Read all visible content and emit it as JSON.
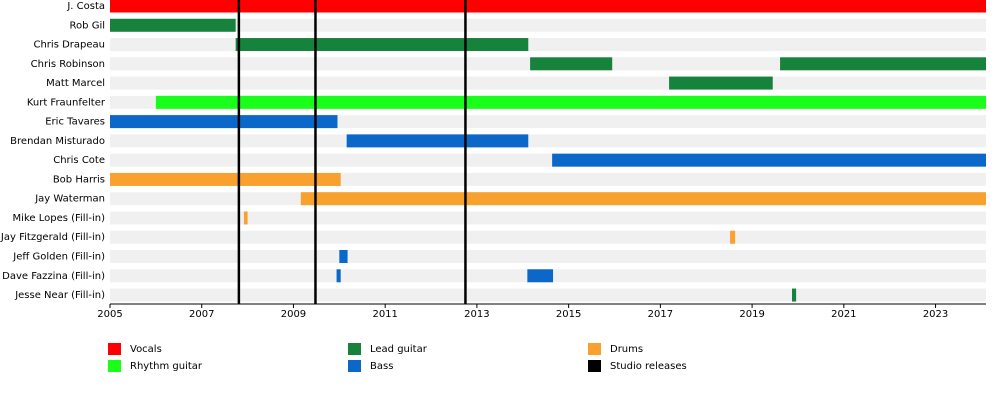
{
  "chart_data": {
    "type": "timeline",
    "categories": [
      "J. Costa",
      "Rob Gil",
      "Chris Drapeau",
      "Chris Robinson",
      "Matt Marcel",
      "Kurt Fraunfelter",
      "Eric Tavares",
      "Brendan Misturado",
      "Chris Cote",
      "Bob Harris",
      "Jay Waterman",
      "Mike Lopes (Fill-in)",
      "Jay Fitzgerald (Fill-in)",
      "Jeff Golden (Fill-in)",
      "Dave Fazzina (Fill-in)",
      "Jesse Near (Fill-in)"
    ],
    "xlim": [
      2005,
      2024.1
    ],
    "xticks": [
      2005,
      2007,
      2009,
      2011,
      2013,
      2015,
      2017,
      2019,
      2021,
      2023
    ],
    "series": [
      {
        "name": "Vocals",
        "color": "#ff0000",
        "spans": [
          {
            "member": "J. Costa",
            "start": 2005,
            "end": 2024.1
          }
        ]
      },
      {
        "name": "Rhythm guitar",
        "color": "#1aff1a",
        "spans": [
          {
            "member": "Kurt Fraunfelter",
            "start": 2006.0,
            "end": 2024.1
          }
        ]
      },
      {
        "name": "Lead guitar",
        "color": "#17823b",
        "spans": [
          {
            "member": "Rob Gil",
            "start": 2005,
            "end": 2007.74
          },
          {
            "member": "Chris Drapeau",
            "start": 2007.74,
            "end": 2014.12
          },
          {
            "member": "Chris Robinson",
            "start": 2014.16,
            "end": 2015.95
          },
          {
            "member": "Chris Robinson",
            "start": 2019.61,
            "end": 2024.1
          },
          {
            "member": "Matt Marcel",
            "start": 2017.19,
            "end": 2019.45
          },
          {
            "member": "Jesse Near (Fill-in)",
            "start": 2019.87,
            "end": 2019.96
          }
        ]
      },
      {
        "name": "Bass",
        "color": "#0b68c9",
        "spans": [
          {
            "member": "Eric Tavares",
            "start": 2005,
            "end": 2009.96
          },
          {
            "member": "Brendan Misturado",
            "start": 2010.16,
            "end": 2014.12
          },
          {
            "member": "Chris Cote",
            "start": 2014.64,
            "end": 2024.1
          },
          {
            "member": "Jeff Golden (Fill-in)",
            "start": 2010.0,
            "end": 2010.18
          },
          {
            "member": "Dave Fazzina (Fill-in)",
            "start": 2009.94,
            "end": 2010.03
          },
          {
            "member": "Dave Fazzina (Fill-in)",
            "start": 2014.1,
            "end": 2014.66
          }
        ]
      },
      {
        "name": "Drums",
        "color": "#f8a12f",
        "spans": [
          {
            "member": "Bob Harris",
            "start": 2005,
            "end": 2010.03
          },
          {
            "member": "Jay Waterman",
            "start": 2009.16,
            "end": 2024.1
          },
          {
            "member": "Mike Lopes (Fill-in)",
            "start": 2007.92,
            "end": 2008.0
          },
          {
            "member": "Jay Fitzgerald (Fill-in)",
            "start": 2018.52,
            "end": 2018.63
          }
        ]
      }
    ],
    "releases": {
      "name": "Studio releases",
      "color": "#000000",
      "x": [
        2007.81,
        2009.48,
        2012.75
      ]
    }
  }
}
